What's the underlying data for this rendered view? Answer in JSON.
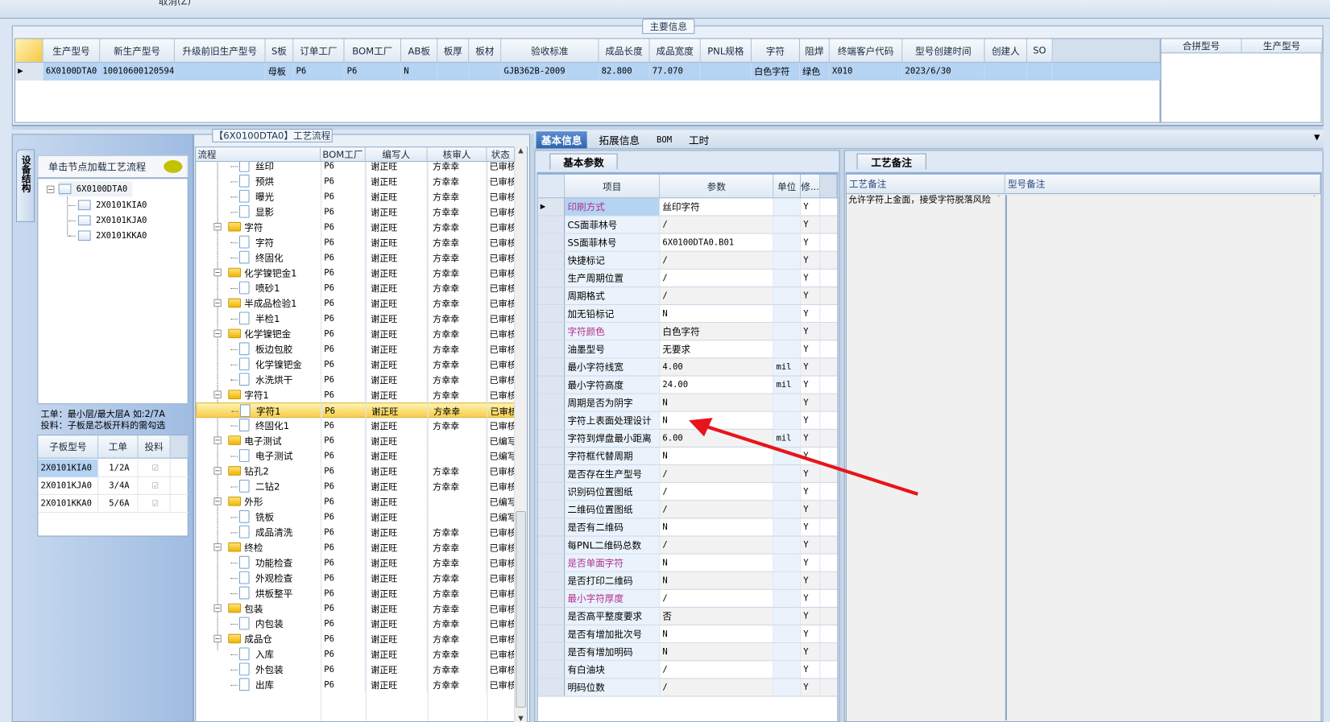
{
  "toolbar": {
    "cancel_label": "取消(Z)"
  },
  "main_info": {
    "tab_label": "主要信息",
    "columns": [
      "生产型号",
      "新生产型号",
      "升级前旧生产型号",
      "S板",
      "订单工厂",
      "BOM工厂",
      "AB板",
      "板厚",
      "板材",
      "验收标准",
      "成品长度",
      "成品宽度",
      "PNL规格",
      "字符",
      "阻焊",
      "终端客户代码",
      "型号创建时间",
      "创建人",
      "SO"
    ],
    "rows": [
      [
        "6X0100DTA0",
        "10010600120594",
        "",
        "母板",
        "P6",
        "P6",
        "N",
        "",
        "",
        "GJB362B-2009",
        "82.800",
        "77.070",
        "",
        "白色字符",
        "绿色",
        "X010",
        "2023/6/30",
        "",
        ""
      ]
    ],
    "side_columns": [
      "合拼型号",
      "生产型号"
    ]
  },
  "structure_panel": {
    "vertical_tab": "设备结构",
    "title": "单击节点加载工艺流程",
    "tree": {
      "root": "6X0100DTA0",
      "children": [
        "2X0101KIA0",
        "2X0101KJA0",
        "2X0101KKA0"
      ]
    },
    "note_lines": [
      "工单：最小层/最大层A 如:2/7A",
      "投料：子板是芯板开料的需勾选"
    ],
    "sub_columns": [
      "子板型号",
      "工单",
      "投料"
    ],
    "sub_rows": [
      {
        "model": "2X0101KIA0",
        "order": "1/2A",
        "feed": true
      },
      {
        "model": "2X0101KJA0",
        "order": "3/4A",
        "feed": true
      },
      {
        "model": "2X0101KKA0",
        "order": "5/6A",
        "feed": true
      }
    ]
  },
  "process_panel": {
    "title": "【6X0100DTA0】工艺流程",
    "columns": [
      "流程",
      "BOM工厂",
      "编写人",
      "核审人",
      "状态"
    ],
    "rows": [
      {
        "name": "丝印",
        "level": 2,
        "bom": "P6",
        "writer": "谢正旺",
        "reviewer": "方幸幸",
        "status": "已审核"
      },
      {
        "name": "预烘",
        "level": 2,
        "bom": "P6",
        "writer": "谢正旺",
        "reviewer": "方幸幸",
        "status": "已审核"
      },
      {
        "name": "曝光",
        "level": 2,
        "bom": "P6",
        "writer": "谢正旺",
        "reviewer": "方幸幸",
        "status": "已审核"
      },
      {
        "name": "显影",
        "level": 2,
        "bom": "P6",
        "writer": "谢正旺",
        "reviewer": "方幸幸",
        "status": "已审核"
      },
      {
        "name": "字符",
        "level": 1,
        "bom": "P6",
        "writer": "谢正旺",
        "reviewer": "方幸幸",
        "status": "已审核"
      },
      {
        "name": "字符",
        "level": 2,
        "bom": "P6",
        "writer": "谢正旺",
        "reviewer": "方幸幸",
        "status": "已审核"
      },
      {
        "name": "终固化",
        "level": 2,
        "bom": "P6",
        "writer": "谢正旺",
        "reviewer": "方幸幸",
        "status": "已审核"
      },
      {
        "name": "化学镍钯金1",
        "level": 1,
        "bom": "P6",
        "writer": "谢正旺",
        "reviewer": "方幸幸",
        "status": "已审核"
      },
      {
        "name": "喷砂1",
        "level": 2,
        "bom": "P6",
        "writer": "谢正旺",
        "reviewer": "方幸幸",
        "status": "已审核"
      },
      {
        "name": "半成品检验1",
        "level": 1,
        "bom": "P6",
        "writer": "谢正旺",
        "reviewer": "方幸幸",
        "status": "已审核"
      },
      {
        "name": "半检1",
        "level": 2,
        "bom": "P6",
        "writer": "谢正旺",
        "reviewer": "方幸幸",
        "status": "已审核"
      },
      {
        "name": "化学镍钯金",
        "level": 1,
        "bom": "P6",
        "writer": "谢正旺",
        "reviewer": "方幸幸",
        "status": "已审核"
      },
      {
        "name": "板边包胶",
        "level": 2,
        "bom": "P6",
        "writer": "谢正旺",
        "reviewer": "方幸幸",
        "status": "已审核"
      },
      {
        "name": "化学镍钯金",
        "level": 2,
        "bom": "P6",
        "writer": "谢正旺",
        "reviewer": "方幸幸",
        "status": "已审核"
      },
      {
        "name": "水洗烘干",
        "level": 2,
        "bom": "P6",
        "writer": "谢正旺",
        "reviewer": "方幸幸",
        "status": "已审核"
      },
      {
        "name": "字符1",
        "level": 1,
        "bom": "P6",
        "writer": "谢正旺",
        "reviewer": "方幸幸",
        "status": "已审核"
      },
      {
        "name": "字符1",
        "level": 2,
        "bom": "P6",
        "writer": "谢正旺",
        "reviewer": "方幸幸",
        "status": "已审核",
        "selected": true
      },
      {
        "name": "终固化1",
        "level": 2,
        "bom": "P6",
        "writer": "谢正旺",
        "reviewer": "方幸幸",
        "status": "已审核"
      },
      {
        "name": "电子测试",
        "level": 1,
        "bom": "P6",
        "writer": "谢正旺",
        "reviewer": "",
        "status": "已编写"
      },
      {
        "name": "电子测试",
        "level": 2,
        "bom": "P6",
        "writer": "谢正旺",
        "reviewer": "",
        "status": "已编写"
      },
      {
        "name": "钻孔2",
        "level": 1,
        "bom": "P6",
        "writer": "谢正旺",
        "reviewer": "方幸幸",
        "status": "已审核"
      },
      {
        "name": "二钻2",
        "level": 2,
        "bom": "P6",
        "writer": "谢正旺",
        "reviewer": "方幸幸",
        "status": "已审核"
      },
      {
        "name": "外形",
        "level": 1,
        "bom": "P6",
        "writer": "谢正旺",
        "reviewer": "",
        "status": "已编写"
      },
      {
        "name": "铣板",
        "level": 2,
        "bom": "P6",
        "writer": "谢正旺",
        "reviewer": "",
        "status": "已编写"
      },
      {
        "name": "成品清洗",
        "level": 2,
        "bom": "P6",
        "writer": "谢正旺",
        "reviewer": "方幸幸",
        "status": "已审核"
      },
      {
        "name": "终检",
        "level": 1,
        "bom": "P6",
        "writer": "谢正旺",
        "reviewer": "方幸幸",
        "status": "已审核"
      },
      {
        "name": "功能检查",
        "level": 2,
        "bom": "P6",
        "writer": "谢正旺",
        "reviewer": "方幸幸",
        "status": "已审核"
      },
      {
        "name": "外观检查",
        "level": 2,
        "bom": "P6",
        "writer": "谢正旺",
        "reviewer": "方幸幸",
        "status": "已审核"
      },
      {
        "name": "烘板整平",
        "level": 2,
        "bom": "P6",
        "writer": "谢正旺",
        "reviewer": "方幸幸",
        "status": "已审核"
      },
      {
        "name": "包装",
        "level": 1,
        "bom": "P6",
        "writer": "谢正旺",
        "reviewer": "方幸幸",
        "status": "已审核"
      },
      {
        "name": "内包装",
        "level": 2,
        "bom": "P6",
        "writer": "谢正旺",
        "reviewer": "方幸幸",
        "status": "已审核"
      },
      {
        "name": "成品仓",
        "level": 1,
        "bom": "P6",
        "writer": "谢正旺",
        "reviewer": "方幸幸",
        "status": "已审核"
      },
      {
        "name": "入库",
        "level": 2,
        "bom": "P6",
        "writer": "谢正旺",
        "reviewer": "方幸幸",
        "status": "已审核"
      },
      {
        "name": "外包装",
        "level": 2,
        "bom": "P6",
        "writer": "谢正旺",
        "reviewer": "方幸幸",
        "status": "已审核"
      },
      {
        "name": "出库",
        "level": 2,
        "bom": "P6",
        "writer": "谢正旺",
        "reviewer": "方幸幸",
        "status": "已审核"
      }
    ]
  },
  "detail_tabs": [
    {
      "label": "基本信息",
      "active": true
    },
    {
      "label": "拓展信息"
    },
    {
      "label": "BOM"
    },
    {
      "label": "工时"
    }
  ],
  "basic_params": {
    "subtab": "基本参数",
    "columns": [
      "项目",
      "参数",
      "单位",
      "修..."
    ],
    "highlight_color": "#b0308a",
    "rows": [
      {
        "item": "印刷方式",
        "value": "丝印字符",
        "unit": "",
        "mod": "Y",
        "hl": true
      },
      {
        "item": "CS面菲林号",
        "value": "/",
        "unit": "",
        "mod": "Y"
      },
      {
        "item": "SS面菲林号",
        "value": "6X0100DTA0.B01",
        "unit": "",
        "mod": "Y"
      },
      {
        "item": "快捷标记",
        "value": "/",
        "unit": "",
        "mod": "Y"
      },
      {
        "item": "生产周期位置",
        "value": "/",
        "unit": "",
        "mod": "Y"
      },
      {
        "item": "周期格式",
        "value": "/",
        "unit": "",
        "mod": "Y"
      },
      {
        "item": "加无铅标记",
        "value": "N",
        "unit": "",
        "mod": "Y"
      },
      {
        "item": "字符颜色",
        "value": "白色字符",
        "unit": "",
        "mod": "Y",
        "hl": true
      },
      {
        "item": "油墨型号",
        "value": "无要求",
        "unit": "",
        "mod": "Y"
      },
      {
        "item": "最小字符线宽",
        "value": "4.00",
        "unit": "mil",
        "mod": "Y"
      },
      {
        "item": "最小字符高度",
        "value": "24.00",
        "unit": "mil",
        "mod": "Y"
      },
      {
        "item": "周期是否为阴字",
        "value": "N",
        "unit": "",
        "mod": "Y"
      },
      {
        "item": "字符上表面处理设计",
        "value": "N",
        "unit": "",
        "mod": "Y"
      },
      {
        "item": "字符到焊盘最小距离",
        "value": "6.00",
        "unit": "mil",
        "mod": "Y"
      },
      {
        "item": "字符框代替周期",
        "value": "N",
        "unit": "",
        "mod": "Y"
      },
      {
        "item": "是否存在生产型号",
        "value": "/",
        "unit": "",
        "mod": "Y"
      },
      {
        "item": "识别码位置图纸",
        "value": "/",
        "unit": "",
        "mod": "Y"
      },
      {
        "item": "二维码位置图纸",
        "value": "/",
        "unit": "",
        "mod": "Y"
      },
      {
        "item": "是否有二维码",
        "value": "N",
        "unit": "",
        "mod": "Y"
      },
      {
        "item": "每PNL二维码总数",
        "value": "/",
        "unit": "",
        "mod": "Y"
      },
      {
        "item": "是否单面字符",
        "value": "N",
        "unit": "",
        "mod": "Y",
        "hl": true
      },
      {
        "item": "是否打印二维码",
        "value": "N",
        "unit": "",
        "mod": "Y"
      },
      {
        "item": "最小字符厚度",
        "value": "/",
        "unit": "",
        "mod": "Y",
        "hl": true
      },
      {
        "item": "是否高平整度要求",
        "value": "否",
        "unit": "",
        "mod": "Y"
      },
      {
        "item": "是否有增加批次号",
        "value": "N",
        "unit": "",
        "mod": "Y"
      },
      {
        "item": "是否有增加明码",
        "value": "N",
        "unit": "",
        "mod": "Y"
      },
      {
        "item": "有白油块",
        "value": "/",
        "unit": "",
        "mod": "Y"
      },
      {
        "item": "明码位数",
        "value": "/",
        "unit": "",
        "mod": "Y"
      }
    ]
  },
  "remarks": {
    "subtab": "工艺备注",
    "columns": [
      "工艺备注",
      "型号备注"
    ],
    "process_remark": "允许字符上金面，接受字符脱落风险",
    "model_remark": ""
  },
  "annotation": {
    "arrow_color": "#e8141b"
  }
}
